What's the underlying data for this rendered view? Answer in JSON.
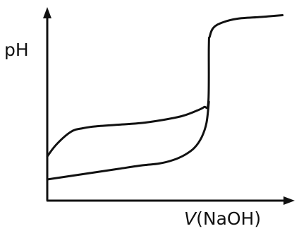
{
  "chart_data": {
    "type": "line",
    "ylabel": "pH",
    "xlabel": {
      "variable": "V",
      "unit": "(NaOH)"
    },
    "grid": false,
    "legend": "none",
    "xlim": [
      0,
      10
    ],
    "ylim": [
      0,
      10
    ],
    "series": [
      {
        "x": [
          0,
          0.4,
          1.0,
          1.5,
          2.0,
          3.0,
          4.0,
          5.0,
          5.7,
          6.3,
          6.6,
          6.78,
          6.8,
          6.84,
          7.0,
          7.4,
          8.0,
          9.0,
          9.9
        ],
        "y": [
          2.5,
          3.2,
          3.9,
          4.1,
          4.2,
          4.3,
          4.4,
          4.6,
          4.8,
          5.1,
          5.3,
          5.6,
          8.8,
          9.3,
          9.8,
          10.1,
          10.3,
          10.4,
          10.5
        ]
      },
      {
        "x": [
          0,
          1.0,
          2.0,
          3.0,
          4.0,
          4.7,
          5.3,
          5.8,
          6.2,
          6.5,
          6.7,
          6.8
        ],
        "y": [
          1.2,
          1.4,
          1.6,
          1.8,
          2.0,
          2.1,
          2.3,
          2.6,
          3.0,
          3.6,
          4.4,
          5.6
        ]
      }
    ]
  }
}
